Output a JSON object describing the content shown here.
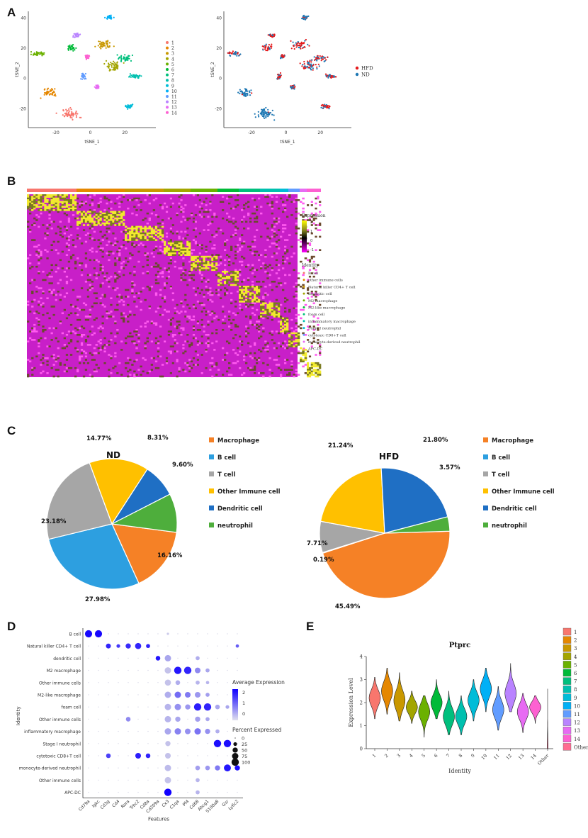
{
  "panels": {
    "A": "A",
    "B": "B",
    "C": "C",
    "D": "D",
    "E": "E"
  },
  "tsne": {
    "xlabel": "tSNE_1",
    "ylabel": "tSNE_2",
    "xticks": [
      "-20",
      "0",
      "20"
    ],
    "yticks": [
      "40",
      "20",
      "0",
      "-20"
    ],
    "xtick_vals": [
      -20,
      0,
      20
    ],
    "ytick_vals": [
      40,
      20,
      0,
      -20
    ],
    "xlim": [
      -36,
      38
    ],
    "ylim": [
      -33,
      44
    ],
    "cluster_legend": [
      {
        "label": "1",
        "color": "#F8766D"
      },
      {
        "label": "2",
        "color": "#E58700"
      },
      {
        "label": "3",
        "color": "#C99800"
      },
      {
        "label": "4",
        "color": "#A3A500"
      },
      {
        "label": "5",
        "color": "#6BB100"
      },
      {
        "label": "6",
        "color": "#00BA38"
      },
      {
        "label": "7",
        "color": "#00BF7D"
      },
      {
        "label": "8",
        "color": "#00C0AF"
      },
      {
        "label": "9",
        "color": "#00BCD8"
      },
      {
        "label": "10",
        "color": "#00B0F6"
      },
      {
        "label": "11",
        "color": "#619CFF"
      },
      {
        "label": "12",
        "color": "#B983FF"
      },
      {
        "label": "13",
        "color": "#E76BF3"
      },
      {
        "label": "14",
        "color": "#FD61D1"
      }
    ],
    "group_legend": [
      {
        "label": "HFD",
        "color": "#E41A1C"
      },
      {
        "label": "ND",
        "color": "#1F78B4"
      }
    ]
  },
  "heatmap": {
    "legend_title": "Expression",
    "scale_labels": [
      "2",
      "1",
      "0",
      "-1"
    ],
    "identity_title": "Identity",
    "identities": [
      {
        "label": "B cell",
        "color": "#F8766D"
      },
      {
        "label": "other immune cells",
        "color": "#E58700"
      },
      {
        "label": "Natural killer CD4+ T cell",
        "color": "#C99800"
      },
      {
        "label": "dendritic cell",
        "color": "#A3A500"
      },
      {
        "label": "M2 macrophage",
        "color": "#6BB100"
      },
      {
        "label": "M2-like macrophage",
        "color": "#00BA38"
      },
      {
        "label": "foam cell",
        "color": "#00BF7D"
      },
      {
        "label": "inflammatory macrophage",
        "color": "#00C0AF"
      },
      {
        "label": "Stage I neutrophil",
        "color": "#00BCD8"
      },
      {
        "label": "cytotoxic CD8+T cell",
        "color": "#619CFF"
      },
      {
        "label": "monocyte-derived neutrophil",
        "color": "#E76BF3"
      },
      {
        "label": "APC-DC",
        "color": "#FD61D1"
      }
    ]
  },
  "chart_data": [
    {
      "type": "pie",
      "title": "ND",
      "categories": [
        "Macrophage",
        "B cell",
        "T cell",
        "Other Immune cell",
        "Dendritic cell",
        "neutrophil"
      ],
      "values": [
        16.16,
        27.98,
        23.18,
        14.77,
        8.31,
        9.6
      ],
      "value_labels": [
        "16.16%",
        "27.98%",
        "23.18%",
        "14.77%",
        "8.31%",
        "9.60%"
      ],
      "colors": [
        "#F58126",
        "#2D9FE0",
        "#A6A6A6",
        "#FFC000",
        "#1F6FC4",
        "#4EAE3C"
      ]
    },
    {
      "type": "pie",
      "title": "HFD",
      "categories": [
        "Macrophage",
        "B cell",
        "T cell",
        "Other Immune cell",
        "Dendritic cell",
        "neutrophil"
      ],
      "values": [
        45.49,
        0.19,
        7.71,
        21.24,
        21.8,
        3.57
      ],
      "value_labels": [
        "45.49%",
        "0.19%",
        "7.71%",
        "21.24%",
        "21.80%",
        "3.57%"
      ],
      "colors": [
        "#F58126",
        "#2D9FE0",
        "#A6A6A6",
        "#FFC000",
        "#1F6FC4",
        "#4EAE3C"
      ]
    },
    {
      "type": "scatter",
      "subtype": "dotplot",
      "xlabel": "Features",
      "ylabel": "Identity",
      "features": [
        "Cd79a",
        "Igkc",
        "Cd3g",
        "Cd4",
        "Rora",
        "Trbc2",
        "Cd8a",
        "Cd209a",
        "Cx3",
        "C1qa",
        "Pf4",
        "Cd68",
        "Abcg1",
        "S100a8",
        "Gsr",
        "Ly6c2"
      ],
      "identities": [
        "B cell",
        "Natural killer CD4+ T cell",
        "dendritic cell",
        "M2 macrophage",
        "Other immune cells",
        "M2-like macrophage",
        "foam cell",
        "Other immune cells",
        "inflammatory macrophage",
        "Stage I neutrophil",
        "cytotoxic CD8+T cell",
        "monocyte-derived neutrophil",
        "Other immune cells",
        "APC-DC"
      ],
      "avg_expr_title": "Average Expression",
      "avg_expr_ticks": [
        "2",
        "1",
        "0"
      ],
      "pct_title": "Percent Expressed",
      "pct_levels": [
        0,
        25,
        50,
        75,
        100
      ],
      "pct_labels": [
        "0",
        "25",
        "50",
        "75",
        "100"
      ],
      "dots": [
        {
          "row": 0,
          "col": 0,
          "pct": 95,
          "expr": 2.4
        },
        {
          "row": 0,
          "col": 1,
          "pct": 95,
          "expr": 2.4
        },
        {
          "row": 0,
          "col": 8,
          "pct": 10,
          "expr": -0.3
        },
        {
          "row": 1,
          "col": 2,
          "pct": 45,
          "expr": 2.0
        },
        {
          "row": 1,
          "col": 3,
          "pct": 25,
          "expr": 1.7
        },
        {
          "row": 1,
          "col": 4,
          "pct": 50,
          "expr": 1.9
        },
        {
          "row": 1,
          "col": 5,
          "pct": 70,
          "expr": 2.0
        },
        {
          "row": 1,
          "col": 6,
          "pct": 30,
          "expr": 2.0
        },
        {
          "row": 1,
          "col": 15,
          "pct": 20,
          "expr": 1.2
        },
        {
          "row": 2,
          "col": 7,
          "pct": 40,
          "expr": 2.2
        },
        {
          "row": 2,
          "col": 8,
          "pct": 75,
          "expr": 0.2
        },
        {
          "row": 2,
          "col": 11,
          "pct": 30,
          "expr": 0.1
        },
        {
          "row": 3,
          "col": 8,
          "pct": 75,
          "expr": -0.2
        },
        {
          "row": 3,
          "col": 9,
          "pct": 100,
          "expr": 2.2
        },
        {
          "row": 3,
          "col": 10,
          "pct": 100,
          "expr": 2.0
        },
        {
          "row": 3,
          "col": 11,
          "pct": 60,
          "expr": 0.6
        },
        {
          "row": 3,
          "col": 12,
          "pct": 30,
          "expr": 0.2
        },
        {
          "row": 4,
          "col": 8,
          "pct": 70,
          "expr": -0.2
        },
        {
          "row": 4,
          "col": 9,
          "pct": 40,
          "expr": 0.1
        },
        {
          "row": 4,
          "col": 11,
          "pct": 30,
          "expr": 0.0
        },
        {
          "row": 4,
          "col": 12,
          "pct": 20,
          "expr": 0.0
        },
        {
          "row": 5,
          "col": 8,
          "pct": 75,
          "expr": 0.1
        },
        {
          "row": 5,
          "col": 9,
          "pct": 75,
          "expr": 1.0
        },
        {
          "row": 5,
          "col": 10,
          "pct": 60,
          "expr": 0.8
        },
        {
          "row": 5,
          "col": 11,
          "pct": 60,
          "expr": 0.4
        },
        {
          "row": 5,
          "col": 12,
          "pct": 30,
          "expr": 0.3
        },
        {
          "row": 6,
          "col": 8,
          "pct": 75,
          "expr": 0.0
        },
        {
          "row": 6,
          "col": 9,
          "pct": 75,
          "expr": 0.5
        },
        {
          "row": 6,
          "col": 10,
          "pct": 50,
          "expr": 0.4
        },
        {
          "row": 6,
          "col": 11,
          "pct": 100,
          "expr": 2.1
        },
        {
          "row": 6,
          "col": 12,
          "pct": 100,
          "expr": 2.0
        },
        {
          "row": 6,
          "col": 13,
          "pct": 40,
          "expr": 0.2
        },
        {
          "row": 6,
          "col": 14,
          "pct": 25,
          "expr": 0.2
        },
        {
          "row": 7,
          "col": 4,
          "pct": 40,
          "expr": 0.6
        },
        {
          "row": 7,
          "col": 8,
          "pct": 75,
          "expr": 0.0
        },
        {
          "row": 7,
          "col": 9,
          "pct": 50,
          "expr": 0.2
        },
        {
          "row": 7,
          "col": 11,
          "pct": 50,
          "expr": 0.3
        },
        {
          "row": 7,
          "col": 12,
          "pct": 30,
          "expr": 0.2
        },
        {
          "row": 8,
          "col": 8,
          "pct": 75,
          "expr": 0.2
        },
        {
          "row": 8,
          "col": 9,
          "pct": 75,
          "expr": 0.7
        },
        {
          "row": 8,
          "col": 10,
          "pct": 60,
          "expr": 0.5
        },
        {
          "row": 8,
          "col": 11,
          "pct": 75,
          "expr": 0.9
        },
        {
          "row": 8,
          "col": 12,
          "pct": 50,
          "expr": 0.5
        },
        {
          "row": 8,
          "col": 13,
          "pct": 30,
          "expr": 0.1
        },
        {
          "row": 9,
          "col": 8,
          "pct": 50,
          "expr": -0.2
        },
        {
          "row": 9,
          "col": 13,
          "pct": 100,
          "expr": 2.3
        },
        {
          "row": 9,
          "col": 14,
          "pct": 100,
          "expr": 2.3
        },
        {
          "row": 10,
          "col": 2,
          "pct": 40,
          "expr": 1.6
        },
        {
          "row": 10,
          "col": 5,
          "pct": 60,
          "expr": 2.1
        },
        {
          "row": 10,
          "col": 6,
          "pct": 40,
          "expr": 2.0
        },
        {
          "row": 10,
          "col": 8,
          "pct": 60,
          "expr": -0.2
        },
        {
          "row": 11,
          "col": 8,
          "pct": 75,
          "expr": -0.1
        },
        {
          "row": 11,
          "col": 11,
          "pct": 40,
          "expr": 0.3
        },
        {
          "row": 11,
          "col": 12,
          "pct": 40,
          "expr": 0.4
        },
        {
          "row": 11,
          "col": 13,
          "pct": 50,
          "expr": 0.8
        },
        {
          "row": 11,
          "col": 14,
          "pct": 90,
          "expr": 2.2
        },
        {
          "row": 11,
          "col": 15,
          "pct": 50,
          "expr": 2.3
        },
        {
          "row": 12,
          "col": 8,
          "pct": 75,
          "expr": -0.2
        },
        {
          "row": 12,
          "col": 11,
          "pct": 30,
          "expr": 0.0
        },
        {
          "row": 13,
          "col": 8,
          "pct": 100,
          "expr": 2.5
        },
        {
          "row": 13,
          "col": 11,
          "pct": 30,
          "expr": 0.0
        }
      ]
    },
    {
      "type": "violin",
      "title": "Ptprc",
      "xlabel": "Identity",
      "ylabel": "Expression Level",
      "categories": [
        "1",
        "2",
        "3",
        "4",
        "5",
        "6",
        "7",
        "8",
        "9",
        "10",
        "11",
        "12",
        "13",
        "14",
        "Other"
      ],
      "medians": [
        2.2,
        2.5,
        2.1,
        1.8,
        1.6,
        2.0,
        1.4,
        1.4,
        2.1,
        2.6,
        1.7,
        2.4,
        1.6,
        1.8,
        0.0
      ],
      "ranges": [
        [
          1.3,
          3.1
        ],
        [
          1.5,
          3.5
        ],
        [
          1.2,
          3.3
        ],
        [
          1.1,
          2.5
        ],
        [
          0.5,
          2.3
        ],
        [
          1.3,
          3.0
        ],
        [
          0.6,
          2.5
        ],
        [
          0.6,
          2.3
        ],
        [
          1.2,
          3.0
        ],
        [
          1.6,
          3.5
        ],
        [
          0.8,
          2.7
        ],
        [
          1.6,
          3.7
        ],
        [
          0.7,
          2.4
        ],
        [
          1.1,
          2.3
        ],
        [
          0,
          2.6
        ]
      ],
      "ylim": [
        0,
        4
      ],
      "yticks": [
        "4",
        "3",
        "2",
        "1",
        "0"
      ],
      "ytick_vals": [
        4,
        3,
        2,
        1,
        0
      ],
      "legend": [
        "1",
        "2",
        "3",
        "4",
        "5",
        "6",
        "7",
        "8",
        "9",
        "10",
        "11",
        "12",
        "13",
        "14",
        "Other"
      ],
      "colors": [
        "#F8766D",
        "#E58700",
        "#C99800",
        "#A3A500",
        "#6BB100",
        "#00BA38",
        "#00BF7D",
        "#00C0AF",
        "#00BCD8",
        "#00B0F6",
        "#619CFF",
        "#B983FF",
        "#E76BF3",
        "#FD61D1",
        "#FF6C91"
      ]
    }
  ]
}
